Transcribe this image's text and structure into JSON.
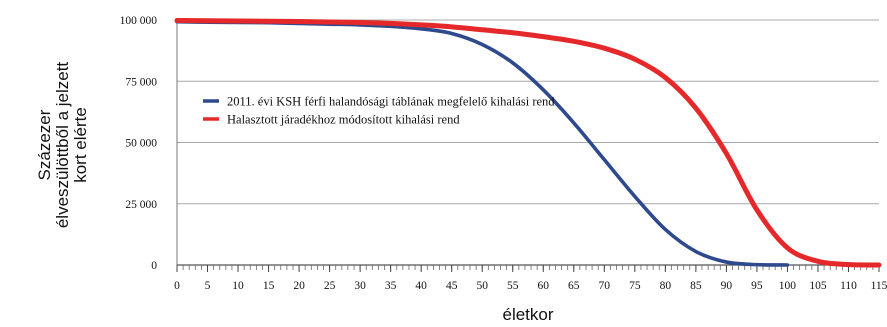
{
  "chart_data": {
    "type": "line",
    "xlabel": "életkor",
    "ylabel_lines": [
      "Százezer",
      "élveszülöttből a jelzett",
      "kort elérte"
    ],
    "xlim": [
      0,
      115
    ],
    "ylim": [
      0,
      100000
    ],
    "x_ticks": [
      0,
      5,
      10,
      15,
      20,
      25,
      30,
      35,
      40,
      45,
      50,
      55,
      60,
      65,
      70,
      75,
      80,
      85,
      90,
      95,
      100,
      105,
      110,
      115
    ],
    "x_tick_labels": [
      "0",
      "5",
      "10",
      "15",
      "20",
      "25",
      "30",
      "35",
      "40",
      "45",
      "50",
      "55",
      "60",
      "65",
      "70",
      "75",
      "80",
      "85",
      "90",
      "95",
      "100",
      "105",
      "110",
      "115"
    ],
    "y_ticks": [
      0,
      25000,
      50000,
      75000,
      100000
    ],
    "y_tick_labels": [
      "0",
      "25 000",
      "50 000",
      "75 000",
      "100 000"
    ],
    "grid": "horizontal",
    "legend_position": "upper-left",
    "series": [
      {
        "name": "2011. évi KSH férfi halandósági táblának megfelelő kihalási rend",
        "color": "#2e4a8c",
        "x": [
          0,
          5,
          10,
          15,
          20,
          25,
          30,
          35,
          40,
          45,
          50,
          55,
          60,
          65,
          70,
          75,
          80,
          85,
          90,
          95,
          100
        ],
        "y": [
          99300,
          99100,
          99000,
          98900,
          98600,
          98300,
          98000,
          97400,
          96400,
          94500,
          90000,
          82500,
          71500,
          58000,
          43000,
          28000,
          14500,
          5500,
          1200,
          150,
          0
        ]
      },
      {
        "name": "Halasztott járadékhoz módosított kihalási rend",
        "color": "#e5282a",
        "x": [
          0,
          5,
          10,
          15,
          20,
          25,
          30,
          35,
          40,
          45,
          50,
          55,
          60,
          65,
          70,
          75,
          80,
          85,
          90,
          95,
          100,
          105,
          110,
          115
        ],
        "y": [
          99800,
          99700,
          99600,
          99500,
          99400,
          99200,
          99000,
          98600,
          98000,
          97200,
          96000,
          94800,
          93200,
          91300,
          88500,
          84000,
          76500,
          64000,
          45500,
          22500,
          7000,
          1500,
          200,
          0
        ]
      }
    ]
  }
}
